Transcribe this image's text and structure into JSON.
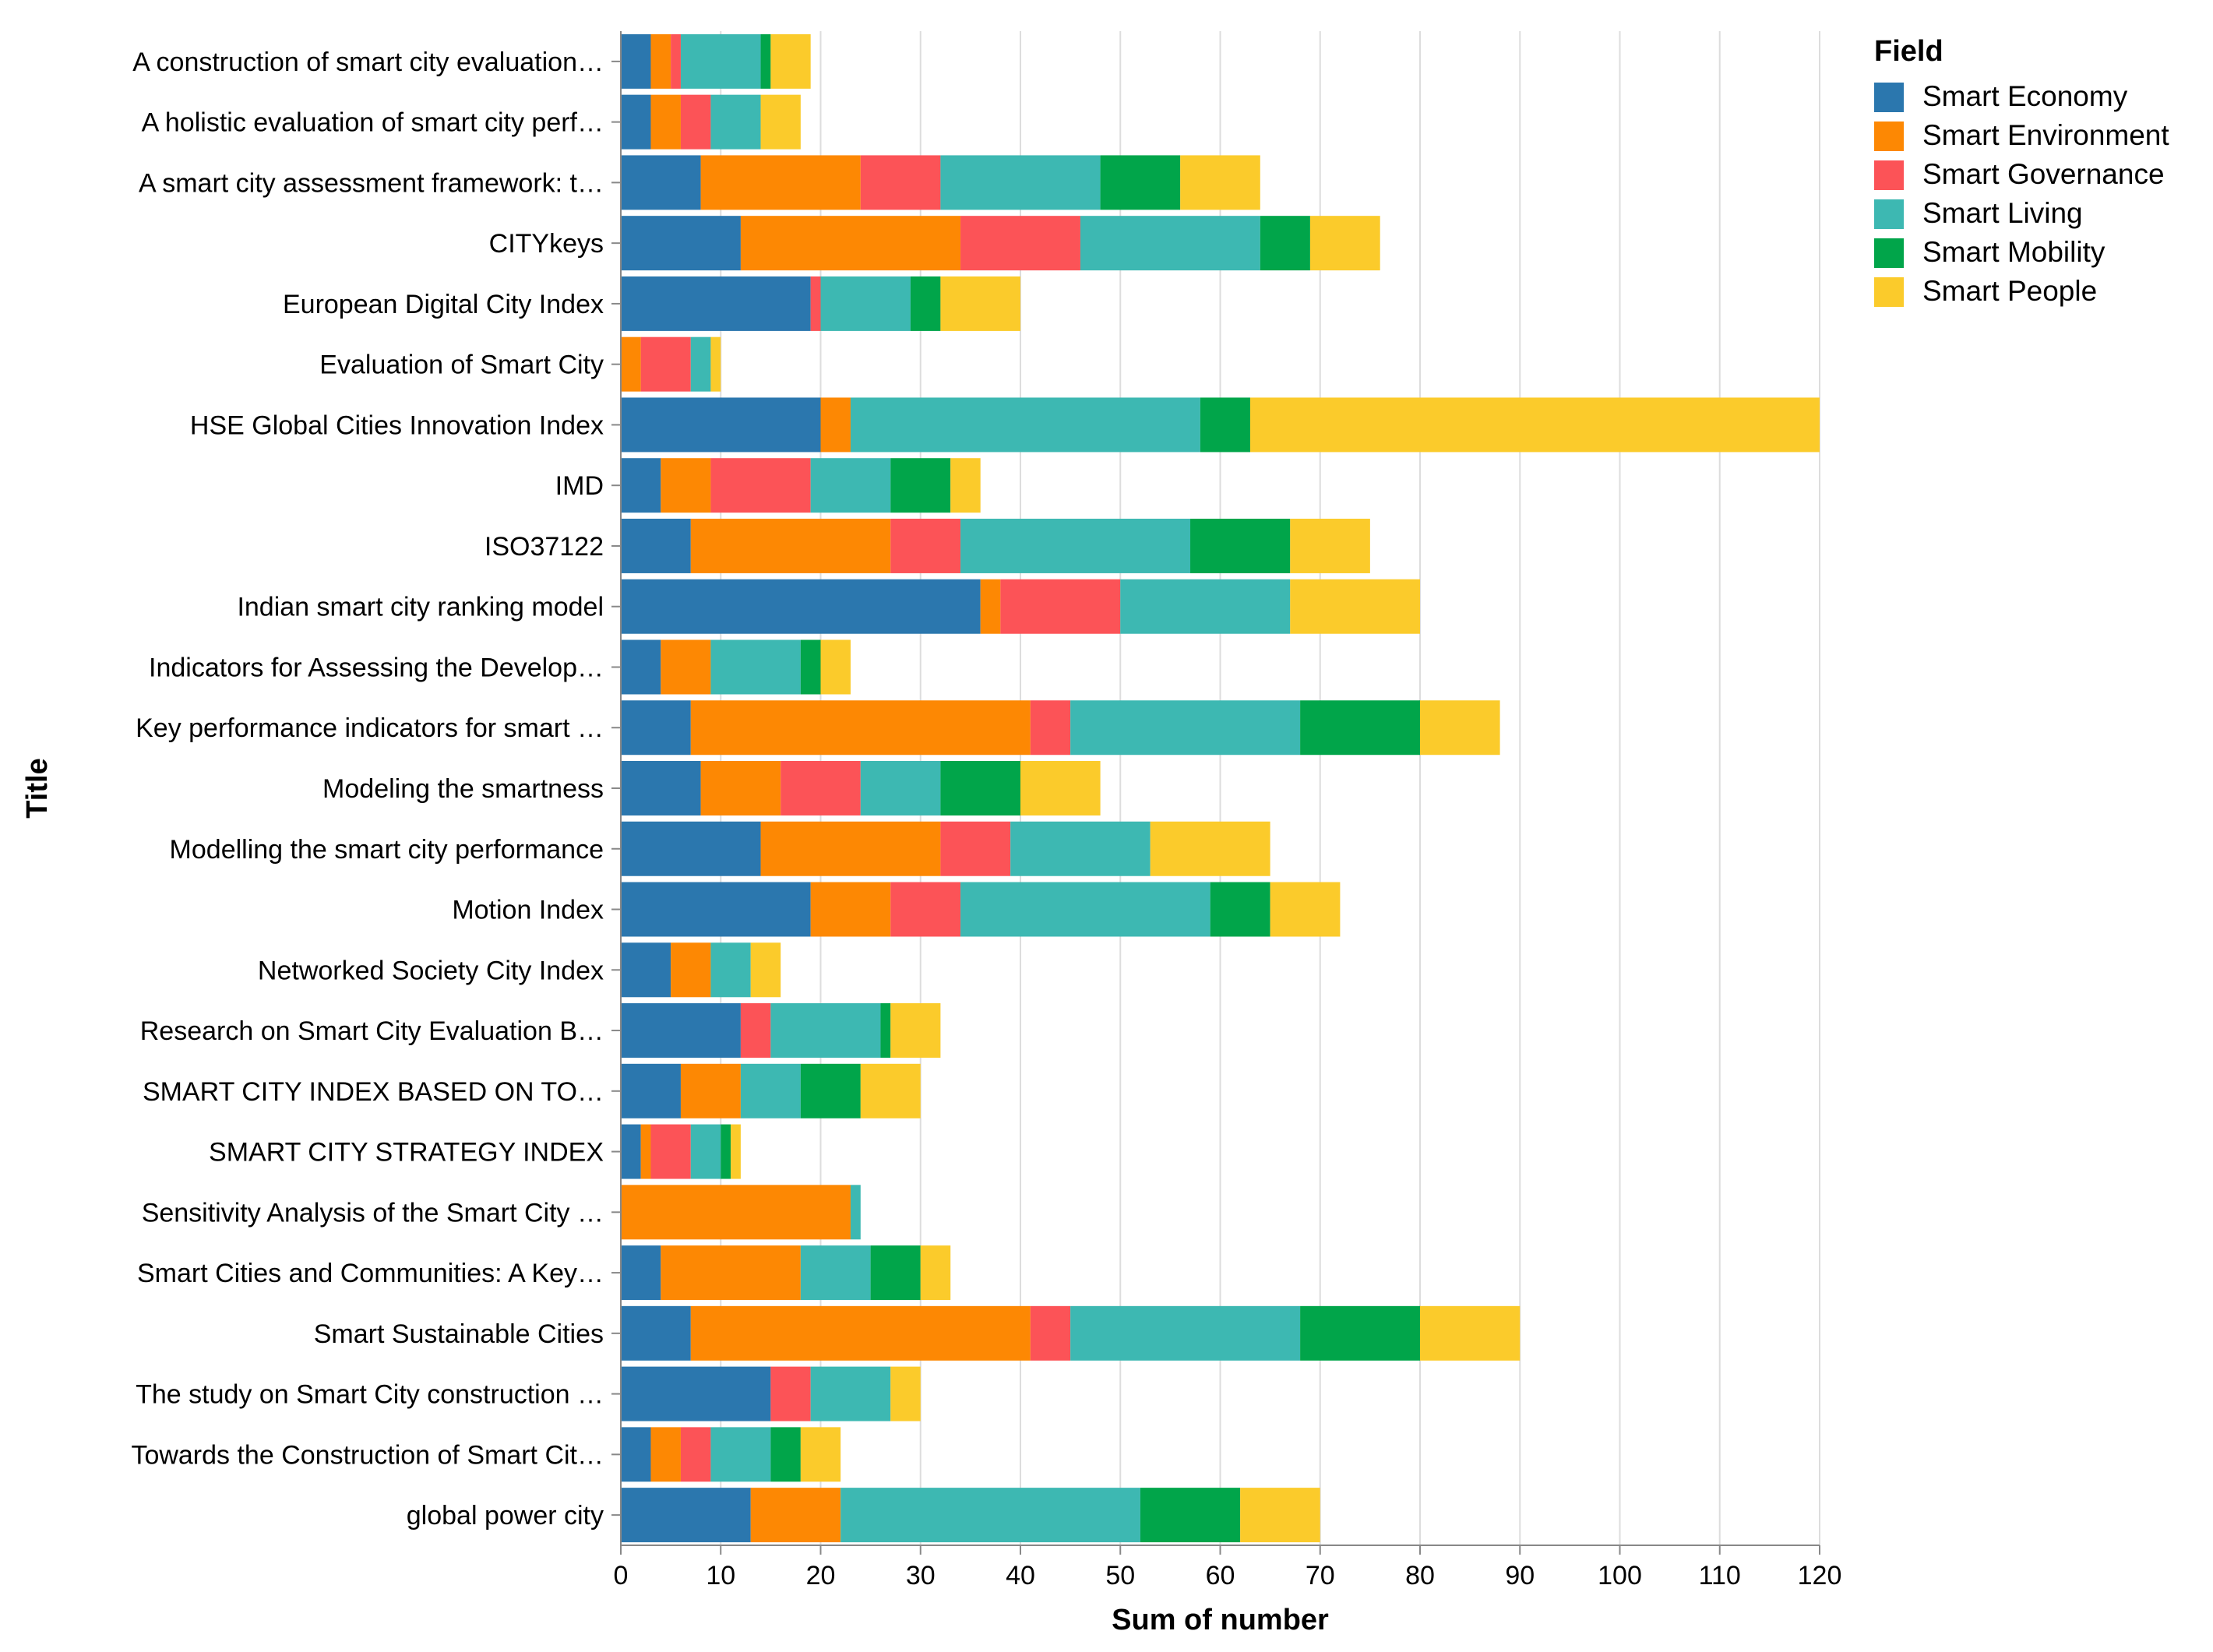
{
  "chart_data": {
    "type": "bar",
    "orientation": "horizontal",
    "stacked": true,
    "title": "",
    "xlabel": "Sum of number",
    "ylabel": "Title",
    "xlim": [
      0,
      120
    ],
    "xticks": [
      0,
      10,
      20,
      30,
      40,
      50,
      60,
      70,
      80,
      90,
      100,
      110,
      120
    ],
    "grid": true,
    "legend": {
      "title": "Field",
      "position": "top-right"
    },
    "categories": [
      "A construction of smart city evaluation…",
      "A holistic evaluation of smart city perf…",
      "A smart city assessment framework: t…",
      "CITYkeys",
      "European Digital City Index",
      "Evaluation of Smart City",
      "HSE Global Cities Innovation Index",
      "IMD",
      "ISO37122",
      "Indian smart city ranking model",
      "Indicators for Assessing the Develop…",
      "Key performance indicators for smart …",
      "Modeling the smartness",
      "Modelling the smart city performance",
      "Motion Index",
      "Networked Society City Index",
      "Research on Smart City Evaluation B…",
      "SMART CITY INDEX BASED ON TO…",
      "SMART CITY STRATEGY INDEX",
      "Sensitivity Analysis of the Smart City …",
      "Smart Cities and Communities: A Key…",
      "Smart Sustainable Cities",
      "The study on Smart City construction …",
      "Towards the Construction of Smart Cit…",
      "global power city"
    ],
    "series": [
      {
        "name": "Smart Economy",
        "color": "#2b77ae",
        "values": [
          3,
          3,
          8,
          12,
          19,
          0,
          20,
          4,
          7,
          36,
          4,
          7,
          8,
          14,
          19,
          5,
          12,
          6,
          2,
          0,
          4,
          7,
          15,
          3,
          13
        ]
      },
      {
        "name": "Smart Environment",
        "color": "#fd8803",
        "values": [
          2,
          3,
          16,
          22,
          0,
          2,
          3,
          5,
          20,
          2,
          5,
          34,
          8,
          18,
          8,
          4,
          0,
          6,
          1,
          23,
          14,
          34,
          0,
          3,
          9
        ]
      },
      {
        "name": "Smart Governance",
        "color": "#fc5357",
        "values": [
          1,
          3,
          8,
          12,
          1,
          5,
          0,
          10,
          7,
          12,
          0,
          4,
          8,
          7,
          7,
          0,
          3,
          0,
          4,
          0,
          0,
          4,
          4,
          3,
          0
        ]
      },
      {
        "name": "Smart Living",
        "color": "#3db8b2",
        "values": [
          8,
          5,
          16,
          18,
          9,
          2,
          35,
          8,
          23,
          17,
          9,
          23,
          8,
          14,
          25,
          4,
          11,
          6,
          3,
          1,
          7,
          23,
          8,
          6,
          30
        ]
      },
      {
        "name": "Smart Mobility",
        "color": "#01a54a",
        "values": [
          1,
          0,
          8,
          5,
          3,
          0,
          5,
          6,
          10,
          0,
          2,
          12,
          8,
          0,
          6,
          0,
          1,
          6,
          1,
          0,
          5,
          12,
          0,
          3,
          10
        ]
      },
      {
        "name": "Smart People",
        "color": "#fbcb2b",
        "values": [
          4,
          4,
          8,
          7,
          8,
          1,
          57,
          3,
          8,
          13,
          3,
          8,
          8,
          12,
          7,
          3,
          5,
          6,
          1,
          0,
          3,
          10,
          3,
          4,
          8
        ]
      }
    ]
  }
}
